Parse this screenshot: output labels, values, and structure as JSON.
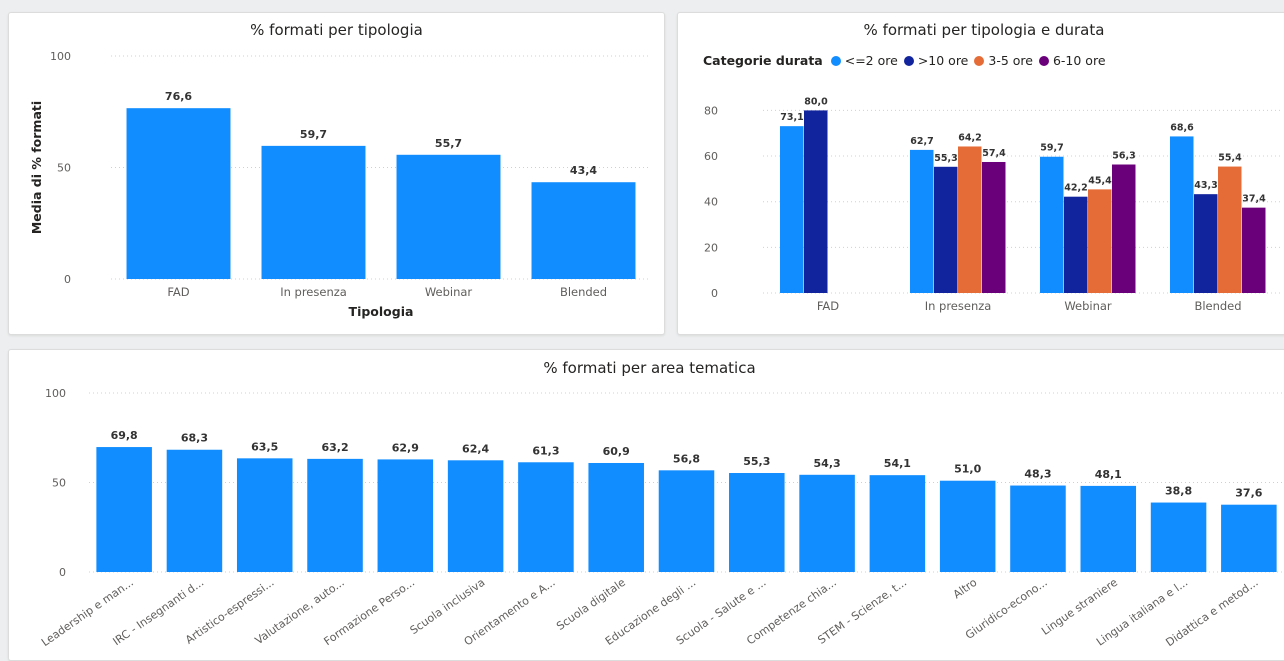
{
  "chart_data": [
    {
      "type": "bar",
      "title": "% formati per tipologia",
      "xlabel": "Tipologia",
      "ylabel": "Media di % formati",
      "ylim": [
        0,
        100
      ],
      "yticks": [
        0,
        50,
        100
      ],
      "categories": [
        "FAD",
        "In presenza",
        "Webinar",
        "Blended"
      ],
      "values": [
        76.6,
        59.7,
        55.7,
        43.4
      ],
      "value_labels": [
        "76,6",
        "59,7",
        "55,7",
        "43,4"
      ],
      "color": "#118dff",
      "grid": true
    },
    {
      "type": "bar",
      "title": "% formati per tipologia e durata",
      "legend_title": "Categorie durata",
      "legend_position": "top-left",
      "ylim": [
        0,
        85
      ],
      "yticks": [
        0,
        20,
        40,
        60,
        80
      ],
      "categories": [
        "FAD",
        "In presenza",
        "Webinar",
        "Blended"
      ],
      "series": [
        {
          "name": "<=2 ore",
          "color": "#118dff",
          "values": [
            73.1,
            62.7,
            59.7,
            68.6
          ],
          "labels": [
            "73,1",
            "62,7",
            "59,7",
            "68,6"
          ]
        },
        {
          "name": ">10 ore",
          "color": "#12239e",
          "values": [
            80.0,
            55.3,
            42.2,
            43.3
          ],
          "labels": [
            "80,0",
            "55,3",
            "42,2",
            "43,3"
          ]
        },
        {
          "name": "3-5 ore",
          "color": "#e66c37",
          "values": [
            null,
            64.2,
            45.4,
            55.4
          ],
          "labels": [
            "",
            "64,2",
            "45,4",
            "55,4"
          ]
        },
        {
          "name": "6-10 ore",
          "color": "#6b007b",
          "values": [
            null,
            57.4,
            56.3,
            37.4
          ],
          "labels": [
            "",
            "57,4",
            "56,3",
            "37,4"
          ]
        }
      ],
      "grid": true
    },
    {
      "type": "bar",
      "title": "% formati per area tematica",
      "ylim": [
        0,
        100
      ],
      "yticks": [
        0,
        50,
        100
      ],
      "categories": [
        "Leadership e man...",
        "IRC - Insegnanti d...",
        "Artistico-espressi...",
        "Valutazione, auto...",
        "Formazione Perso...",
        "Scuola inclusiva",
        "Orientamento e A...",
        "Scuola digitale",
        "Educazione degli ...",
        "Scuola - Salute e ...",
        "Competenze chia...",
        "STEM - Scienze, t...",
        "Altro",
        "Giuridico-econo...",
        "Lingue straniere",
        "Lingua italiana e l...",
        "Didattica e metod..."
      ],
      "values": [
        69.8,
        68.3,
        63.5,
        63.2,
        62.9,
        62.4,
        61.3,
        60.9,
        56.8,
        55.3,
        54.3,
        54.1,
        51.0,
        48.3,
        48.1,
        38.8,
        37.6
      ],
      "value_labels": [
        "69,8",
        "68,3",
        "63,5",
        "63,2",
        "62,9",
        "62,4",
        "61,3",
        "60,9",
        "56,8",
        "55,3",
        "54,3",
        "54,1",
        "51,0",
        "48,3",
        "48,1",
        "38,8",
        "37,6"
      ],
      "color": "#118dff",
      "grid": true
    }
  ]
}
